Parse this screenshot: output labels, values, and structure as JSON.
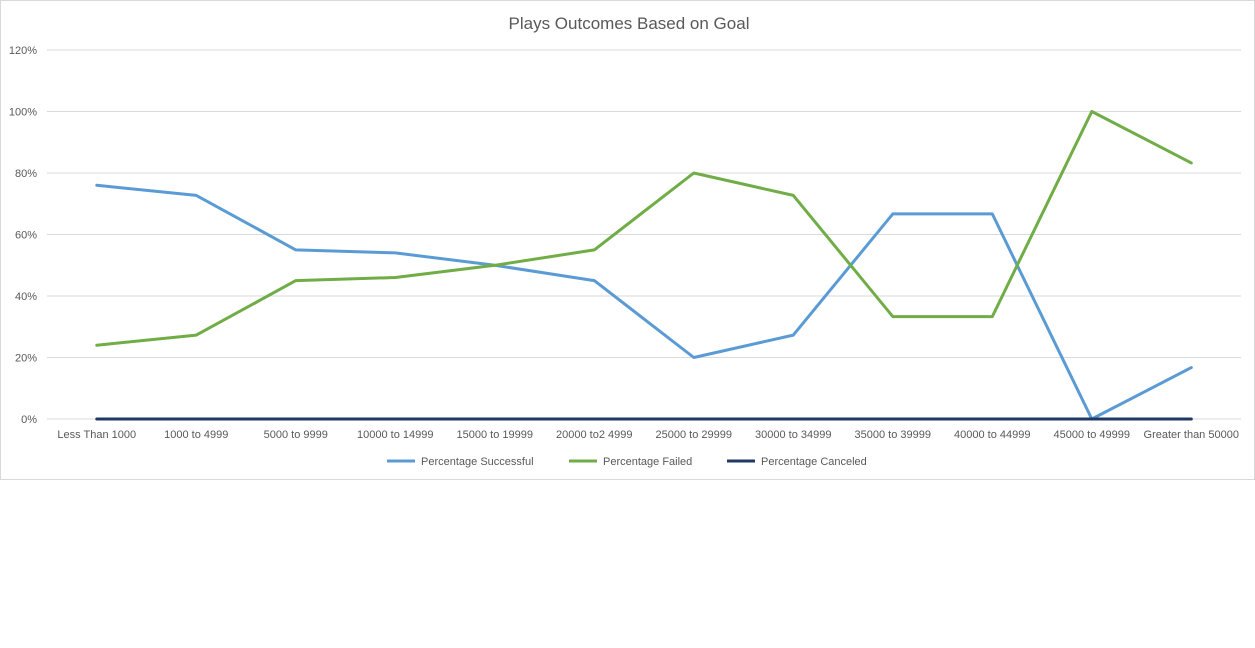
{
  "chart_data": {
    "type": "line",
    "title": "Plays Outcomes Based on Goal",
    "xlabel": "",
    "ylabel": "",
    "categories": [
      "Less Than 1000",
      "1000 to 4999",
      "5000 to 9999",
      "10000 to 14999",
      "15000 to 19999",
      "20000 to2 4999",
      "25000 to 29999",
      "30000 to 34999",
      "35000 to 39999",
      "40000 to 44999",
      "45000 to 49999",
      "Greater than 50000"
    ],
    "y_ticks": [
      "0%",
      "20%",
      "40%",
      "60%",
      "80%",
      "100%",
      "120%"
    ],
    "ylim": [
      0,
      1.2
    ],
    "y_format": "percent",
    "grid": true,
    "legend_position": "bottom",
    "series": [
      {
        "name": "Percentage Successful",
        "color": "#5b9bd5",
        "values": [
          0.76,
          0.727,
          0.55,
          0.54,
          0.5,
          0.45,
          0.2,
          0.273,
          0.667,
          0.667,
          0.0,
          0.167
        ]
      },
      {
        "name": "Percentage Failed",
        "color": "#70ad47",
        "values": [
          0.24,
          0.273,
          0.45,
          0.46,
          0.5,
          0.55,
          0.8,
          0.727,
          0.333,
          0.333,
          1.0,
          0.833
        ]
      },
      {
        "name": "Percentage Canceled",
        "color": "#203864",
        "values": [
          0,
          0,
          0,
          0,
          0,
          0,
          0,
          0,
          0,
          0,
          0,
          0
        ]
      }
    ]
  }
}
